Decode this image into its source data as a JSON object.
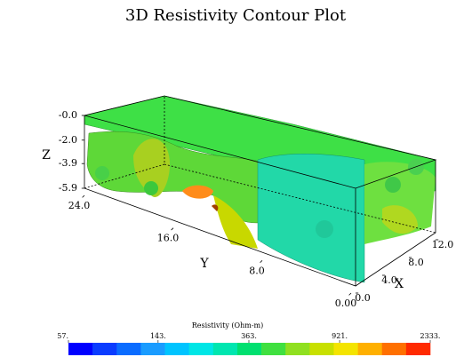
{
  "chart_data": {
    "type": "contour3d",
    "title": "3D Resistivity Contour Plot",
    "zlabel": "Z",
    "ylabel": "Y",
    "xlabel": "X",
    "zticks": [
      {
        "value": 0,
        "label": "-0.0"
      },
      {
        "value": -2.0,
        "label": "-2.0"
      },
      {
        "value": -3.9,
        "label": "-3.9"
      },
      {
        "value": -5.9,
        "label": "-5.9"
      }
    ],
    "yticks": [
      {
        "value": 24,
        "label": "24.0"
      },
      {
        "value": 16,
        "label": "16.0"
      },
      {
        "value": 8,
        "label": "8.0"
      },
      {
        "value": 0,
        "label": "0.00"
      }
    ],
    "xticks": [
      {
        "value": 0,
        "label": "0.0"
      },
      {
        "value": 4,
        "label": "4.0"
      },
      {
        "value": 8,
        "label": "8.0"
      },
      {
        "value": 12,
        "label": "12.0"
      }
    ],
    "zlim": [
      0,
      -5.9
    ],
    "ylim": [
      24,
      0
    ],
    "xlim": [
      0,
      12
    ],
    "colorbar": {
      "title": "Resistivity (Ohm-m)",
      "log": true,
      "clim": [
        57,
        2333
      ],
      "ticks": [
        {
          "value": 57,
          "label": "57."
        },
        {
          "value": 143,
          "label": "143."
        },
        {
          "value": 363,
          "label": "363."
        },
        {
          "value": 921,
          "label": "921."
        },
        {
          "value": 2333,
          "label": "2333."
        }
      ],
      "colors": [
        "#0000ff",
        "#0a3cff",
        "#0a6cff",
        "#1a9cff",
        "#00c4ff",
        "#00e6e6",
        "#00e6b0",
        "#00e070",
        "#40e040",
        "#90e020",
        "#c8e000",
        "#f4e400",
        "#ffb000",
        "#ff7000",
        "#ff2a00"
      ]
    }
  }
}
